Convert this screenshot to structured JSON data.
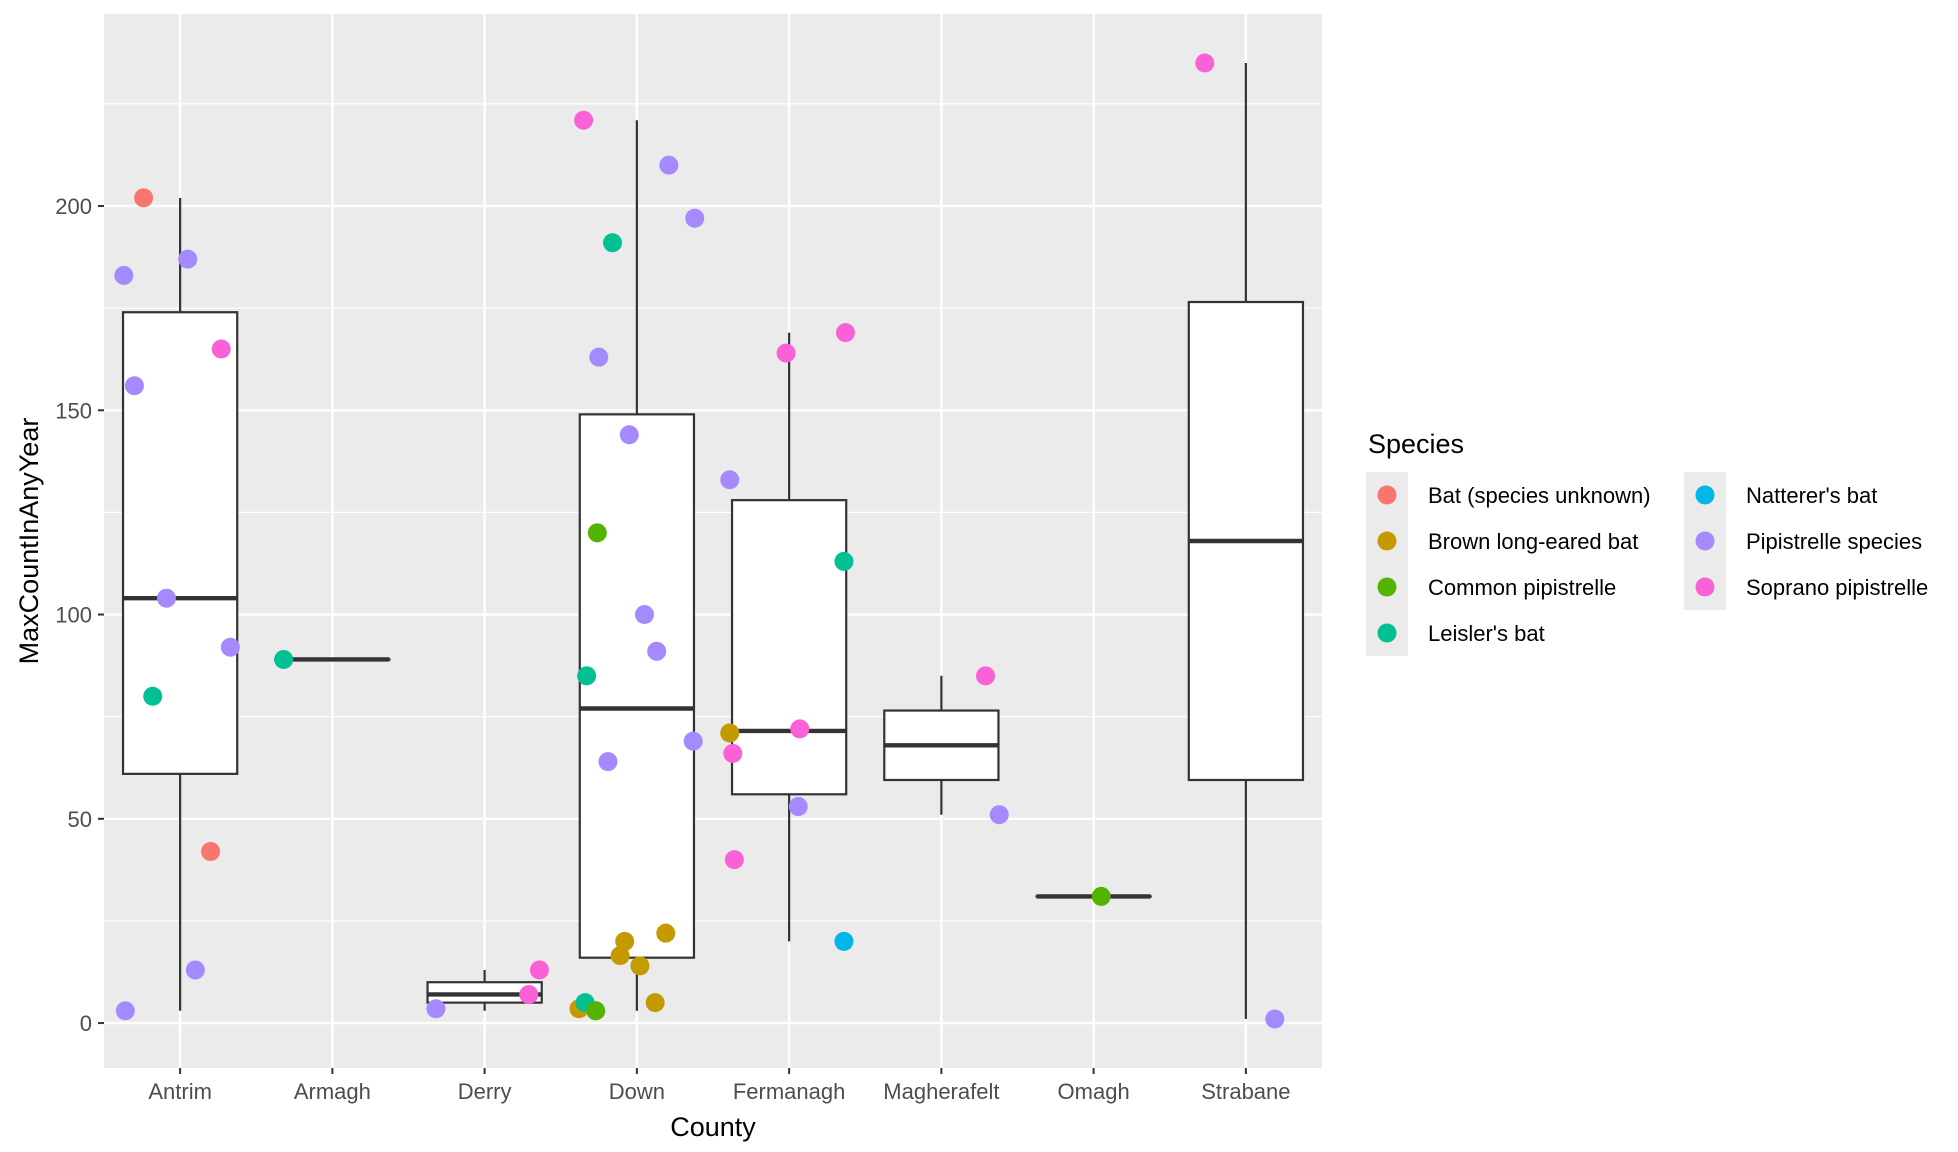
{
  "chart_data": {
    "type": "boxplot-with-jitter",
    "xlabel": "County",
    "ylabel": "MaxCountInAnyYear",
    "ylim": [
      -11,
      247
    ],
    "yticks": [
      0,
      50,
      100,
      150,
      200
    ],
    "categories": [
      "Antrim",
      "Armagh",
      "Derry",
      "Down",
      "Fermanagh",
      "Magherafelt",
      "Omagh",
      "Strabane"
    ],
    "grid": true,
    "legend": {
      "title": "Species",
      "placement": "right",
      "columns": 2,
      "entries": [
        {
          "name": "Bat (species unknown)",
          "color": "#F8766D"
        },
        {
          "name": "Brown long-eared bat",
          "color": "#C49A00"
        },
        {
          "name": "Common pipistrelle",
          "color": "#53B400"
        },
        {
          "name": "Leisler's bat",
          "color": "#00C094"
        },
        {
          "name": "Natterer's bat",
          "color": "#00B6EB"
        },
        {
          "name": "Pipistrelle species",
          "color": "#A58AFF"
        },
        {
          "name": "Soprano pipistrelle",
          "color": "#FB61D7"
        }
      ]
    },
    "boxes": [
      {
        "county": "Antrim",
        "min": 3,
        "q1": 61,
        "median": 104,
        "q3": 174,
        "max": 202
      },
      {
        "county": "Armagh",
        "min": 89,
        "q1": 89,
        "median": 89,
        "q3": 89,
        "max": 89
      },
      {
        "county": "Derry",
        "min": 3,
        "q1": 5,
        "median": 7,
        "q3": 10,
        "max": 13
      },
      {
        "county": "Down",
        "min": 3,
        "q1": 16,
        "median": 77,
        "q3": 149,
        "max": 221
      },
      {
        "county": "Fermanagh",
        "min": 20,
        "q1": 56,
        "median": 71.5,
        "q3": 128,
        "max": 169
      },
      {
        "county": "Magherafelt",
        "min": 51,
        "q1": 59.5,
        "median": 68,
        "q3": 76.5,
        "max": 85
      },
      {
        "county": "Omagh",
        "min": 31,
        "q1": 31,
        "median": 31,
        "q3": 31,
        "max": 31
      },
      {
        "county": "Strabane",
        "min": 1,
        "q1": 59.5,
        "median": 118,
        "q3": 176.5,
        "max": 235
      }
    ],
    "points": [
      {
        "county": "Antrim",
        "jitter": -0.24,
        "y": 202,
        "species": "Bat (species unknown)"
      },
      {
        "county": "Antrim",
        "jitter": 0.2,
        "y": 42,
        "species": "Bat (species unknown)"
      },
      {
        "county": "Antrim",
        "jitter": -0.37,
        "y": 183,
        "species": "Pipistrelle species"
      },
      {
        "county": "Antrim",
        "jitter": 0.05,
        "y": 187,
        "species": "Pipistrelle species"
      },
      {
        "county": "Antrim",
        "jitter": -0.3,
        "y": 156,
        "species": "Pipistrelle species"
      },
      {
        "county": "Antrim",
        "jitter": -0.09,
        "y": 104,
        "species": "Pipistrelle species"
      },
      {
        "county": "Antrim",
        "jitter": 0.33,
        "y": 92,
        "species": "Pipistrelle species"
      },
      {
        "county": "Antrim",
        "jitter": 0.1,
        "y": 13,
        "species": "Pipistrelle species"
      },
      {
        "county": "Antrim",
        "jitter": -0.36,
        "y": 3,
        "species": "Pipistrelle species"
      },
      {
        "county": "Antrim",
        "jitter": 0.27,
        "y": 165,
        "species": "Soprano pipistrelle"
      },
      {
        "county": "Antrim",
        "jitter": -0.18,
        "y": 80,
        "species": "Leisler's bat"
      },
      {
        "county": "Armagh",
        "jitter": -0.32,
        "y": 89,
        "species": "Leisler's bat"
      },
      {
        "county": "Derry",
        "jitter": -0.32,
        "y": 3.5,
        "species": "Pipistrelle species"
      },
      {
        "county": "Derry",
        "jitter": 0.29,
        "y": 7,
        "species": "Soprano pipistrelle"
      },
      {
        "county": "Derry",
        "jitter": 0.36,
        "y": 13,
        "species": "Soprano pipistrelle"
      },
      {
        "county": "Down",
        "jitter": -0.35,
        "y": 221,
        "species": "Soprano pipistrelle"
      },
      {
        "county": "Down",
        "jitter": 0.21,
        "y": 210,
        "species": "Pipistrelle species"
      },
      {
        "county": "Down",
        "jitter": 0.38,
        "y": 197,
        "species": "Pipistrelle species"
      },
      {
        "county": "Down",
        "jitter": -0.16,
        "y": 191,
        "species": "Leisler's bat"
      },
      {
        "county": "Down",
        "jitter": -0.25,
        "y": 163,
        "species": "Pipistrelle species"
      },
      {
        "county": "Down",
        "jitter": -0.05,
        "y": 144,
        "species": "Pipistrelle species"
      },
      {
        "county": "Down",
        "jitter": -0.26,
        "y": 120,
        "species": "Common pipistrelle"
      },
      {
        "county": "Down",
        "jitter": 0.05,
        "y": 100,
        "species": "Pipistrelle species"
      },
      {
        "county": "Down",
        "jitter": 0.13,
        "y": 91,
        "species": "Pipistrelle species"
      },
      {
        "county": "Down",
        "jitter": -0.33,
        "y": 85,
        "species": "Leisler's bat"
      },
      {
        "county": "Down",
        "jitter": 0.37,
        "y": 69,
        "species": "Pipistrelle species"
      },
      {
        "county": "Down",
        "jitter": -0.19,
        "y": 64,
        "species": "Pipistrelle species"
      },
      {
        "county": "Down",
        "jitter": 0.19,
        "y": 22,
        "species": "Brown long-eared bat"
      },
      {
        "county": "Down",
        "jitter": -0.08,
        "y": 20,
        "species": "Brown long-eared bat"
      },
      {
        "county": "Down",
        "jitter": -0.11,
        "y": 16.5,
        "species": "Brown long-eared bat"
      },
      {
        "county": "Down",
        "jitter": 0.02,
        "y": 14,
        "species": "Brown long-eared bat"
      },
      {
        "county": "Down",
        "jitter": 0.12,
        "y": 5,
        "species": "Brown long-eared bat"
      },
      {
        "county": "Down",
        "jitter": -0.38,
        "y": 3.5,
        "species": "Brown long-eared bat"
      },
      {
        "county": "Down",
        "jitter": -0.34,
        "y": 5,
        "species": "Leisler's bat"
      },
      {
        "county": "Down",
        "jitter": -0.27,
        "y": 3,
        "species": "Common pipistrelle"
      },
      {
        "county": "Fermanagh",
        "jitter": -0.39,
        "y": 133,
        "species": "Pipistrelle species"
      },
      {
        "county": "Fermanagh",
        "jitter": 0.37,
        "y": 169,
        "species": "Soprano pipistrelle"
      },
      {
        "county": "Fermanagh",
        "jitter": -0.02,
        "y": 164,
        "species": "Soprano pipistrelle"
      },
      {
        "county": "Fermanagh",
        "jitter": 0.36,
        "y": 113,
        "species": "Leisler's bat"
      },
      {
        "county": "Fermanagh",
        "jitter": 0.07,
        "y": 72,
        "species": "Soprano pipistrelle"
      },
      {
        "county": "Fermanagh",
        "jitter": -0.39,
        "y": 71,
        "species": "Brown long-eared bat"
      },
      {
        "county": "Fermanagh",
        "jitter": -0.37,
        "y": 66,
        "species": "Soprano pipistrelle"
      },
      {
        "county": "Fermanagh",
        "jitter": 0.06,
        "y": 53,
        "species": "Pipistrelle species"
      },
      {
        "county": "Fermanagh",
        "jitter": -0.36,
        "y": 40,
        "species": "Soprano pipistrelle"
      },
      {
        "county": "Fermanagh",
        "jitter": 0.36,
        "y": 20,
        "species": "Natterer's bat"
      },
      {
        "county": "Magherafelt",
        "jitter": 0.29,
        "y": 85,
        "species": "Soprano pipistrelle"
      },
      {
        "county": "Magherafelt",
        "jitter": 0.38,
        "y": 51,
        "species": "Pipistrelle species"
      },
      {
        "county": "Omagh",
        "jitter": 0.05,
        "y": 31,
        "species": "Common pipistrelle"
      },
      {
        "county": "Strabane",
        "jitter": -0.27,
        "y": 235,
        "species": "Soprano pipistrelle"
      },
      {
        "county": "Strabane",
        "jitter": 0.19,
        "y": 1,
        "species": "Pipistrelle species"
      }
    ]
  }
}
